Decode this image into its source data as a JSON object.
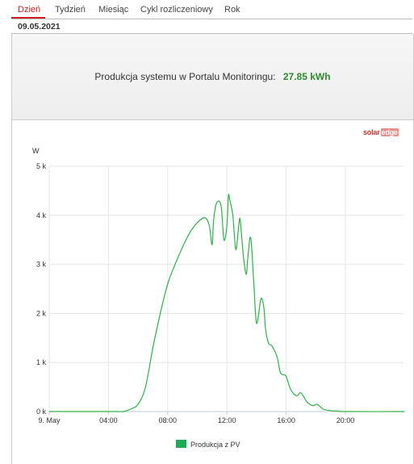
{
  "tabs": [
    {
      "label": "Dzień",
      "active": true
    },
    {
      "label": "Tydzień",
      "active": false
    },
    {
      "label": "Miesiąc",
      "active": false
    },
    {
      "label": "Cykl rozliczeniowy",
      "active": false
    },
    {
      "label": "Rok",
      "active": false
    }
  ],
  "date": "09.05.2021",
  "summary": {
    "label": "Produkcja systemu w Portalu Monitoringu:",
    "value": "27.85 kWh"
  },
  "brand": {
    "part1": "solar",
    "part2": "edge"
  },
  "colors": {
    "accent": "#cc1f1f",
    "series": "#2fb04a",
    "value": "#2e8b2e",
    "legend": "#1faa5a"
  },
  "chart_data": {
    "type": "line",
    "ylabel": "W",
    "y_tick_labels": [
      "0 k",
      "1 k",
      "2 k",
      "3 k",
      "4 k",
      "5 k"
    ],
    "ylim": [
      0,
      5000
    ],
    "x_tick_labels": [
      "9. May",
      "04:00",
      "08:00",
      "12:00",
      "16:00",
      "20:00"
    ],
    "x_tick_hours": [
      0,
      4,
      8,
      12,
      16,
      20
    ],
    "xlim_hours": [
      0,
      24
    ],
    "grid": true,
    "legend": "bottom",
    "series": [
      {
        "name": "Produkcja z PV",
        "x_hours": [
          0,
          4.5,
          5.0,
          5.5,
          6.0,
          6.5,
          7.0,
          7.5,
          8.0,
          8.5,
          9.0,
          9.5,
          10.0,
          10.5,
          10.8,
          11.0,
          11.1,
          11.3,
          11.6,
          11.8,
          12.0,
          12.1,
          12.2,
          12.4,
          12.6,
          12.8,
          12.9,
          13.1,
          13.3,
          13.4,
          13.6,
          13.8,
          14.0,
          14.3,
          14.5,
          14.6,
          14.8,
          15.0,
          15.2,
          15.4,
          15.6,
          15.8,
          16.0,
          16.3,
          16.7,
          17.0,
          17.4,
          17.8,
          18.1,
          18.5,
          19.0,
          19.5,
          20.0,
          24
        ],
        "y": [
          0,
          0,
          0,
          50,
          150,
          500,
          1300,
          2000,
          2600,
          3000,
          3350,
          3650,
          3850,
          3950,
          3800,
          3400,
          3900,
          4250,
          4200,
          3500,
          3800,
          4400,
          4300,
          4000,
          3300,
          3800,
          3900,
          3200,
          2800,
          3100,
          3550,
          2700,
          1800,
          2300,
          2100,
          1700,
          1400,
          1350,
          1250,
          1100,
          800,
          750,
          720,
          450,
          320,
          380,
          200,
          120,
          150,
          50,
          20,
          10,
          0,
          0
        ]
      }
    ]
  }
}
